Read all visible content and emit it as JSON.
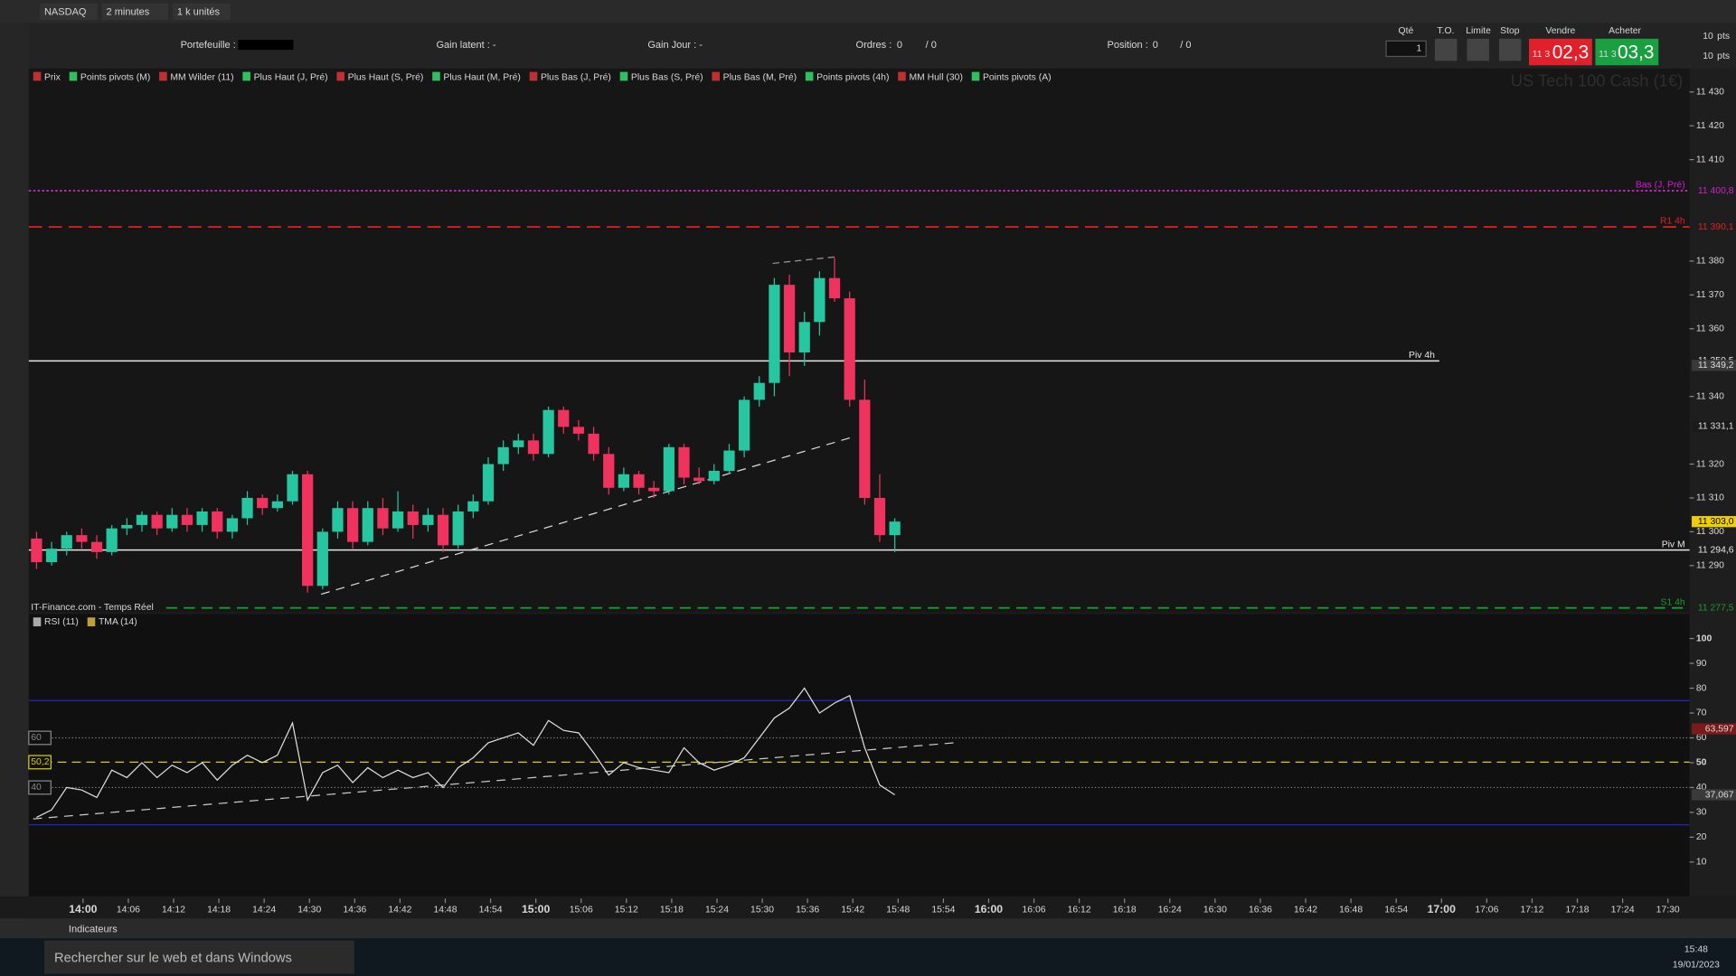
{
  "toolbar": {
    "symbol": "NASDAQ",
    "timeframe": "2 minutes",
    "units": "1 k unités"
  },
  "account": {
    "portfolio": "Portefeuille :",
    "latent": "Gain latent : -",
    "day": "Gain Jour : -",
    "orders_label": "Ordres :",
    "orders": "0",
    "orders2": "/ 0",
    "position_label": "Position :",
    "position": "0",
    "position2": "/ 0"
  },
  "order": {
    "qty_label": "Qté",
    "qty": "1",
    "to": "T.O.",
    "limit": "Limite",
    "stop": "Stop",
    "sell_label": "Vendre",
    "sell_prefix": "11 3",
    "sell": "02,3",
    "buy_label": "Acheter",
    "buy_prefix": "11 3",
    "buy": "03,3",
    "pts1": "10",
    "pts1_unit": "pts",
    "pts2": "10",
    "pts2_unit": "pts"
  },
  "legend": [
    "Prix",
    "Points pivots (M)",
    "MM Wilder (11)",
    "Plus Haut (J, Pré)",
    "Plus Haut (S, Pré)",
    "Plus Haut (M, Pré)",
    "Plus Bas (J, Pré)",
    "Plus Bas (S, Pré)",
    "Plus Bas (M, Pré)",
    "Points pivots (4h)",
    "MM Hull (30)",
    "Points pivots (A)"
  ],
  "watermark": "US Tech 100 Cash (1€)",
  "source": "IT-Finance.com - Temps Réel",
  "time_axis": [
    "14:00",
    "14:06",
    "14:12",
    "14:18",
    "14:24",
    "14:30",
    "14:36",
    "14:42",
    "14:48",
    "14:54",
    "15:00",
    "15:06",
    "15:12",
    "15:18",
    "15:24",
    "15:30",
    "15:36",
    "15:42",
    "15:48",
    "15:54",
    "16:00",
    "16:06",
    "16:12",
    "16:18",
    "16:24",
    "16:30",
    "16:36",
    "16:42",
    "16:48",
    "16:54",
    "17:00",
    "17:06",
    "17:12",
    "17:18",
    "17:24",
    "17:30"
  ],
  "chart_data": [
    {
      "type": "candlestick",
      "up_color": "#26c6a0",
      "down_color": "#f0335e",
      "ylim": [
        11276.3,
        11436.9
      ],
      "yticks": [
        {
          "value": 11430,
          "label": "11 430"
        },
        {
          "value": 11420,
          "label": "11 420"
        },
        {
          "value": 11410,
          "label": "11 410"
        },
        {
          "value": 11380,
          "label": "11 380"
        },
        {
          "value": 11370,
          "label": "11 370"
        },
        {
          "value": 11360,
          "label": "11 360"
        },
        {
          "value": 11340,
          "label": "11 340"
        },
        {
          "value": 11320,
          "label": "11 320"
        },
        {
          "value": 11310,
          "label": "11 310"
        },
        {
          "value": 11300,
          "label": "11 300"
        },
        {
          "value": 11290,
          "label": "11 290"
        }
      ],
      "candles": [
        [
          11298,
          11300,
          11289,
          11291
        ],
        [
          11291,
          11297,
          11290,
          11295
        ],
        [
          11295,
          11300,
          11293,
          11299
        ],
        [
          11299,
          11301,
          11295,
          11297
        ],
        [
          11297,
          11299,
          11292,
          11294
        ],
        [
          11294,
          11302,
          11293,
          11301
        ],
        [
          11301,
          11304,
          11299,
          11302
        ],
        [
          11302,
          11306,
          11300,
          11305
        ],
        [
          11305,
          11306,
          11299,
          11301
        ],
        [
          11301,
          11307,
          11300,
          11305
        ],
        [
          11305,
          11307,
          11300,
          11302
        ],
        [
          11302,
          11307,
          11300,
          11306
        ],
        [
          11306,
          11307,
          11298,
          11300
        ],
        [
          11300,
          11305,
          11298,
          11304
        ],
        [
          11304,
          11312,
          11302,
          11310
        ],
        [
          11310,
          11311,
          11305,
          11307
        ],
        [
          11307,
          11311,
          11306,
          11309
        ],
        [
          11309,
          11318,
          11308,
          11317
        ],
        [
          11317,
          11318,
          11282,
          11284
        ],
        [
          11284,
          11301,
          11283,
          11300
        ],
        [
          11300,
          11309,
          11298,
          11307
        ],
        [
          11307,
          11309,
          11295,
          11297
        ],
        [
          11297,
          11309,
          11296,
          11307
        ],
        [
          11307,
          11310,
          11299,
          11301
        ],
        [
          11301,
          11312,
          11300,
          11306
        ],
        [
          11306,
          11308,
          11298,
          11302
        ],
        [
          11302,
          11307,
          11300,
          11305
        ],
        [
          11305,
          11307,
          11294,
          11296
        ],
        [
          11296,
          11308,
          11295,
          11306
        ],
        [
          11306,
          11311,
          11304,
          11309
        ],
        [
          11309,
          11322,
          11308,
          11320
        ],
        [
          11320,
          11327,
          11318,
          11325
        ],
        [
          11325,
          11329,
          11323,
          11327
        ],
        [
          11327,
          11329,
          11321,
          11323
        ],
        [
          11323,
          11337,
          11322,
          11336
        ],
        [
          11336,
          11337,
          11329,
          11331
        ],
        [
          11331,
          11333,
          11327,
          11329
        ],
        [
          11329,
          11331,
          11321,
          11323
        ],
        [
          11323,
          11325,
          11311,
          11313
        ],
        [
          11313,
          11319,
          11312,
          11317
        ],
        [
          11317,
          11318,
          11311,
          11313
        ],
        [
          11313,
          11315,
          11310,
          11312
        ],
        [
          11312,
          11326,
          11311,
          11325
        ],
        [
          11325,
          11326,
          11314,
          11316
        ],
        [
          11316,
          11319,
          11314,
          11315
        ],
        [
          11315,
          11320,
          11314,
          11318
        ],
        [
          11318,
          11326,
          11317,
          11324
        ],
        [
          11324,
          11340,
          11322,
          11339
        ],
        [
          11339,
          11346,
          11337,
          11344
        ],
        [
          11344,
          11375,
          11340,
          11373
        ],
        [
          11373,
          11376,
          11346,
          11353
        ],
        [
          11353,
          11365,
          11349,
          11362
        ],
        [
          11362,
          11377,
          11358,
          11375
        ],
        [
          11375,
          11381,
          11368,
          11369
        ],
        [
          11369,
          11371,
          11337,
          11339
        ],
        [
          11339,
          11345,
          11308,
          11310
        ],
        [
          11310,
          11317,
          11297,
          11299
        ],
        [
          11299,
          11304,
          11294,
          11303
        ]
      ],
      "levels": [
        {
          "name": "Bas (J, Pré)",
          "value": 11400.8,
          "value_label": "11 400,8",
          "color": "#d020d0",
          "dash": "2,2"
        },
        {
          "name": "R1 4h",
          "value": 11390.1,
          "value_label": "11 390,1",
          "color": "#e02020",
          "dash": "12,6"
        },
        {
          "name": "Piv 4h",
          "value": 11350.5,
          "value_label": "11 350,5",
          "color": "#e8e8e8",
          "dash": ""
        },
        {
          "name": "Piv M",
          "value": 11294.6,
          "value_label": "11 294,6",
          "color": "#e8e8e8",
          "dash": ""
        },
        {
          "name": "S1 4h",
          "value": 11277.5,
          "value_label": "11 277,5",
          "color": "#1a9a30",
          "dash": "10,6"
        }
      ],
      "tags": [
        {
          "value": 11349.2,
          "label": "11 349,2",
          "color": "#3a3a3a"
        },
        {
          "value": 11331.1,
          "label": "11 331,1",
          "color": "#1b1b1b"
        },
        {
          "value": 11303.0,
          "label": "11 303,0",
          "color": "#f0d000"
        }
      ]
    },
    {
      "type": "line",
      "ylim": [
        -3.8,
        109.8
      ],
      "yticks": [
        100,
        90,
        80,
        70,
        60,
        50,
        40,
        30,
        20,
        10
      ],
      "legend": [
        "RSI (11)",
        "TMA (14)"
      ],
      "series": [
        {
          "name": "RSI (11)",
          "color": "#e0e0e0",
          "values": [
            28,
            31,
            40,
            39,
            36,
            47,
            44,
            50,
            44,
            49,
            46,
            50,
            43,
            49,
            53,
            50,
            53,
            66,
            35,
            46,
            49,
            42,
            48,
            44,
            47,
            44,
            46,
            40,
            48,
            52,
            58,
            60,
            62,
            57,
            67,
            63,
            62,
            54,
            45,
            50,
            48,
            47,
            46,
            56,
            50,
            47,
            49,
            52,
            60,
            68,
            72,
            80,
            70,
            74,
            77,
            56,
            41,
            37.067
          ]
        }
      ],
      "levels": [
        {
          "value": 60,
          "label": "60",
          "color": "#888",
          "dash": "1,2"
        },
        {
          "value": 50.2,
          "label": "50,2",
          "color": "#d8d000",
          "dash": "8,5"
        },
        {
          "value": 40,
          "label": "40",
          "color": "#888",
          "dash": "1,2"
        }
      ],
      "bands": [
        75,
        25
      ],
      "tags": [
        {
          "value": 63.597,
          "label": "63,597",
          "color": "#7a1a1a"
        },
        {
          "value": 37.067,
          "label": "37,067",
          "color": "#3a3a3a"
        }
      ]
    }
  ],
  "bottom": {
    "indicators": "Indicateurs"
  },
  "taskbar": {
    "search": "Rechercher sur le web et dans Windows",
    "time": "15:48",
    "date": "19/01/2023"
  }
}
